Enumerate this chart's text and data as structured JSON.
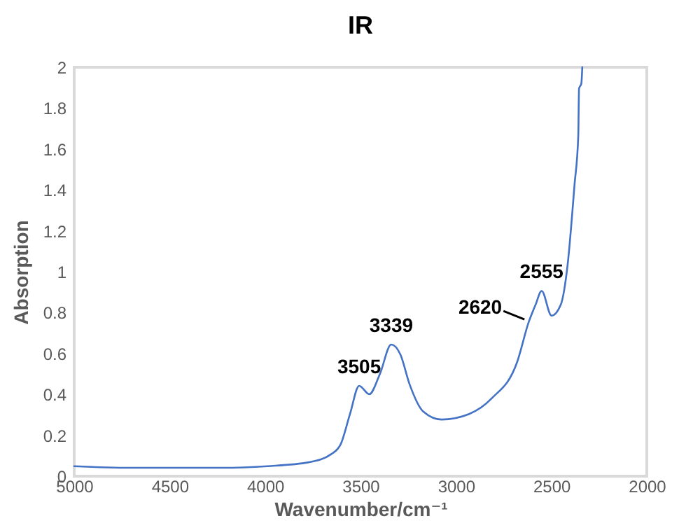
{
  "chart_data": {
    "type": "line",
    "title": "IR",
    "xlabel": "Wavenumber/cm⁻¹",
    "ylabel": "Absorption",
    "x": [
      5000,
      4707,
      4227,
      3987,
      3771,
      3651,
      3603,
      3555,
      3507,
      3454,
      3399,
      3339,
      3291,
      3243,
      3171,
      3075,
      2931,
      2811,
      2679,
      2619,
      2583,
      2551,
      2499,
      2451,
      2415,
      2379,
      2359,
      2355,
      2343,
      2338
    ],
    "series": [
      {
        "color": "#4472c4",
        "values": [
          0.049,
          0.041,
          0.041,
          0.049,
          0.068,
          0.109,
          0.158,
          0.304,
          0.442,
          0.401,
          0.498,
          0.644,
          0.595,
          0.45,
          0.316,
          0.277,
          0.304,
          0.382,
          0.559,
          0.753,
          0.838,
          0.906,
          0.785,
          0.838,
          1.033,
          1.422,
          1.665,
          1.896,
          1.92,
          2.0
        ]
      }
    ],
    "xlim": [
      5000,
      2000
    ],
    "xticks": [
      5000,
      4500,
      4000,
      3500,
      3000,
      2500,
      2000
    ],
    "ylim": [
      0,
      2
    ],
    "yticks": [
      0,
      0.2,
      0.4,
      0.6,
      0.8,
      1,
      1.2,
      1.4,
      1.6,
      1.8,
      2
    ],
    "annotations": [
      {
        "text": "3505",
        "x": 3507,
        "y": 0.442
      },
      {
        "text": "3339",
        "x": 3339,
        "y": 0.644
      },
      {
        "text": "2620",
        "x": 2619,
        "y": 0.753
      },
      {
        "text": "2555",
        "x": 2551,
        "y": 0.906
      }
    ],
    "grid": false,
    "marker": "none",
    "line_style": "solid"
  }
}
